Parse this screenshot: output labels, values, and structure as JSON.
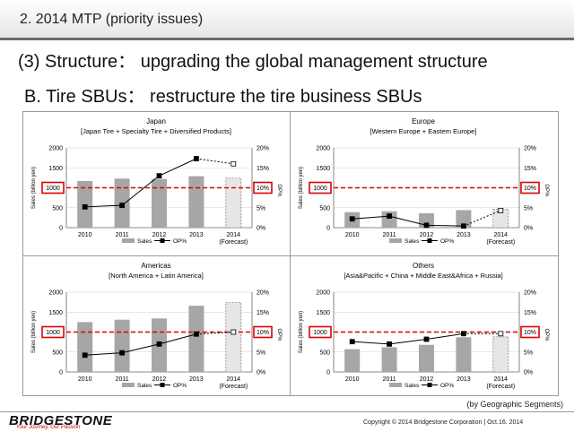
{
  "header": {
    "title": "2. 2014 MTP (priority issues)"
  },
  "subtitle": "(3) Structure：  upgrading the global management structure",
  "subtitle2": "B. Tire SBUs： restructure the tire business SBUs",
  "footnote": "(by Geographic Segments)",
  "footer": {
    "logo": "BRIDGESTONE",
    "tagline": "Your Journey, Our Passion",
    "copyright": "Copyright © 2014 Bridgestone Corporation  |  Oct.16. 2014"
  },
  "colors": {
    "bar": "#a6a6a6",
    "forecast_bar": "#e6e6e6",
    "target_line": "#e00000",
    "line": "#000000"
  },
  "chart_data": [
    {
      "type": "bar",
      "title": "Japan",
      "subtitle": "[Japan Tire + Specialty Tire + Diversified Products]",
      "categories": [
        "2010",
        "2011",
        "2012",
        "2013",
        "2014"
      ],
      "forecast_label": "(Forecast)",
      "series": [
        {
          "name": "Sales",
          "type": "bar",
          "values": [
            1170,
            1230,
            1220,
            1290,
            1240
          ]
        },
        {
          "name": "OP%",
          "type": "line",
          "values": [
            5.2,
            5.6,
            13.0,
            17.3,
            16.0
          ]
        }
      ],
      "ylabel": "Sales (billion yen)",
      "y2label": "OP%",
      "ylim": [
        0,
        2000
      ],
      "yticks": [
        "0",
        "500",
        "1000",
        "1500",
        "2000"
      ],
      "y2lim": [
        0,
        20
      ],
      "y2ticks": [
        "0%",
        "5%",
        "10%",
        "15%",
        "20%"
      ],
      "target": {
        "left_label": "1000",
        "right_label": "10%"
      },
      "legend": [
        "Sales",
        "OP%"
      ]
    },
    {
      "type": "bar",
      "title": "Europe",
      "subtitle": "[Western Europe + Eastern Europe]",
      "categories": [
        "2010",
        "2011",
        "2012",
        "2013",
        "2014"
      ],
      "forecast_label": "(Forecast)",
      "series": [
        {
          "name": "Sales",
          "type": "bar",
          "values": [
            390,
            410,
            360,
            440,
            460
          ]
        },
        {
          "name": "OP%",
          "type": "line",
          "values": [
            2.2,
            2.9,
            0.6,
            0.4,
            4.3
          ]
        }
      ],
      "ylabel": "Sales (billion yen)",
      "y2label": "OP%",
      "ylim": [
        0,
        2000
      ],
      "yticks": [
        "0",
        "500",
        "1000",
        "1500",
        "2000"
      ],
      "y2lim": [
        0,
        20
      ],
      "y2ticks": [
        "0%",
        "5%",
        "10%",
        "15%",
        "20%"
      ],
      "target": {
        "left_label": "1000",
        "right_label": "10%"
      },
      "legend": [
        "Sales",
        "OP%"
      ]
    },
    {
      "type": "bar",
      "title": "Americas",
      "subtitle": "[North America + Latin America]",
      "categories": [
        "2010",
        "2011",
        "2012",
        "2013",
        "2014"
      ],
      "forecast_label": "(Forecast)",
      "series": [
        {
          "name": "Sales",
          "type": "bar",
          "values": [
            1250,
            1310,
            1340,
            1660,
            1740
          ]
        },
        {
          "name": "OP%",
          "type": "line",
          "values": [
            4.2,
            4.8,
            7.0,
            9.5,
            10.0
          ]
        }
      ],
      "ylabel": "Sales (billion yen)",
      "y2label": "OP%",
      "ylim": [
        0,
        2000
      ],
      "yticks": [
        "0",
        "500",
        "1000",
        "1500",
        "2000"
      ],
      "y2lim": [
        0,
        20
      ],
      "y2ticks": [
        "0%",
        "5%",
        "10%",
        "15%",
        "20%"
      ],
      "target": {
        "left_label": "1000",
        "right_label": "10%"
      },
      "legend": [
        "Sales",
        "OP%"
      ]
    },
    {
      "type": "bar",
      "title": "Others",
      "subtitle": "[Asia&Pacific + China + Middle East&Africa + Russia]",
      "categories": [
        "2010",
        "2011",
        "2012",
        "2013",
        "2014"
      ],
      "forecast_label": "(Forecast)",
      "series": [
        {
          "name": "Sales",
          "type": "bar",
          "values": [
            570,
            620,
            680,
            870,
            880
          ]
        },
        {
          "name": "OP%",
          "type": "line",
          "values": [
            7.6,
            7.0,
            8.2,
            9.6,
            9.6
          ]
        }
      ],
      "ylabel": "Sales (billion yen)",
      "y2label": "OP%",
      "ylim": [
        0,
        2000
      ],
      "yticks": [
        "0",
        "500",
        "1000",
        "1500",
        "2000"
      ],
      "y2lim": [
        0,
        20
      ],
      "y2ticks": [
        "0%",
        "5%",
        "10%",
        "15%",
        "20%"
      ],
      "target": {
        "left_label": "1000",
        "right_label": "10%"
      },
      "legend": [
        "Sales",
        "OP%"
      ]
    }
  ]
}
